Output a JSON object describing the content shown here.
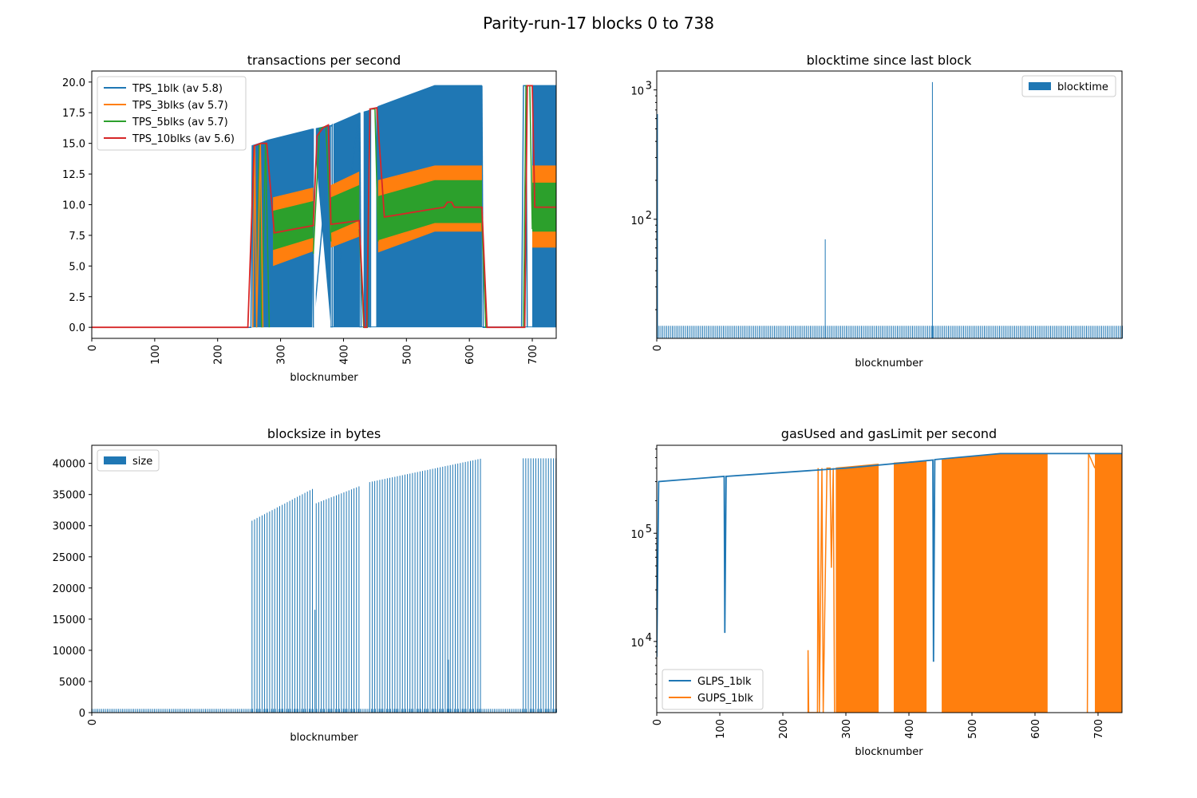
{
  "figure": {
    "title": "Parity-run-17 blocks 0 to 738"
  },
  "colors": {
    "blue": "#1f77b4",
    "orange": "#ff7f0e",
    "green": "#2ca02c",
    "red": "#d62728"
  },
  "chart_data": [
    {
      "id": "tps",
      "type": "line",
      "title": "transactions per second",
      "xlabel": "blocknumber",
      "ylabel": "",
      "xlim": [
        0,
        738
      ],
      "ylim": [
        -0.9,
        20.9
      ],
      "xticks": [
        0,
        100,
        200,
        300,
        400,
        500,
        600,
        700
      ],
      "yticks": [
        "0.0",
        "2.5",
        "5.0",
        "7.5",
        "10.0",
        "12.5",
        "15.0",
        "17.5",
        "20.0"
      ],
      "legend_position": "upper-left",
      "series": [
        {
          "name": "TPS_1blk (av 5.8)",
          "color": "blue",
          "points": [
            [
              0,
              0
            ],
            [
              253,
              0
            ],
            [
              255,
              14.8
            ],
            [
              280,
              15.2
            ],
            [
              350,
              16.0
            ],
            [
              352,
              0
            ],
            [
              380,
              16.4
            ],
            [
              380,
              0
            ],
            [
              425,
              17.5
            ],
            [
              426,
              0
            ],
            [
              440,
              17.7
            ],
            [
              442,
              0
            ],
            [
              455,
              18.0
            ],
            [
              545,
              19.7
            ],
            [
              620,
              19.7
            ],
            [
              622,
              0
            ],
            [
              683,
              0
            ],
            [
              685,
              19.7
            ],
            [
              738,
              19.7
            ]
          ],
          "band": [
            [
              255,
              0,
              14.8
            ],
            [
              280,
              0,
              15.3
            ],
            [
              350,
              0,
              16.2
            ],
            [
              352,
              16.2,
              16.2
            ],
            [
              380,
              0,
              16.5
            ],
            [
              425,
              0,
              17.5
            ],
            [
              440,
              0,
              17.7
            ],
            [
              455,
              0,
              18.0
            ],
            [
              545,
              0,
              19.7
            ],
            [
              620,
              0,
              19.7
            ],
            [
              685,
              0,
              19.7
            ],
            [
              738,
              0,
              19.7
            ]
          ]
        },
        {
          "name": "TPS_3blks (av 5.7)",
          "color": "orange",
          "bands": [
            [
              [
                288,
                5.0,
                10.6
              ],
              [
                352,
                6.2,
                11.4
              ]
            ],
            [
              [
                380,
                6.5,
                11.6
              ],
              [
                425,
                7.4,
                12.7
              ]
            ],
            [
              [
                455,
                6.1,
                12.0
              ],
              [
                545,
                7.8,
                13.2
              ],
              [
                620,
                7.8,
                13.2
              ]
            ],
            [
              [
                700,
                6.5,
                13.2
              ],
              [
                738,
                6.5,
                13.2
              ]
            ]
          ]
        },
        {
          "name": "TPS_5blks (av 5.7)",
          "color": "green",
          "bands": [
            [
              [
                288,
                6.3,
                9.5
              ],
              [
                352,
                7.3,
                10.3
              ]
            ],
            [
              [
                380,
                7.7,
                10.6
              ],
              [
                425,
                8.7,
                11.6
              ]
            ],
            [
              [
                455,
                7.1,
                10.7
              ],
              [
                545,
                8.5,
                12.0
              ],
              [
                620,
                8.5,
                12.0
              ]
            ],
            [
              [
                700,
                7.8,
                11.8
              ],
              [
                738,
                7.8,
                11.8
              ]
            ]
          ]
        },
        {
          "name": "TPS_10blks (av 5.6)",
          "color": "red",
          "points": [
            [
              0,
              0
            ],
            [
              248,
              0
            ],
            [
              258,
              14.8
            ],
            [
              268,
              15.0
            ],
            [
              278,
              15.0
            ],
            [
              290,
              7.7
            ],
            [
              352,
              8.3
            ],
            [
              358,
              15.6
            ],
            [
              368,
              16.3
            ],
            [
              376,
              16.5
            ],
            [
              380,
              8.4
            ],
            [
              425,
              8.7
            ],
            [
              433,
              0
            ],
            [
              437,
              0
            ],
            [
              442,
              17.8
            ],
            [
              453,
              17.9
            ],
            [
              465,
              9.0
            ],
            [
              560,
              9.8
            ],
            [
              565,
              10.2
            ],
            [
              572,
              10.2
            ],
            [
              576,
              9.8
            ],
            [
              620,
              9.8
            ],
            [
              628,
              0
            ],
            [
              688,
              0
            ],
            [
              692,
              19.7
            ],
            [
              700,
              19.7
            ],
            [
              704,
              9.8
            ],
            [
              738,
              9.8
            ]
          ]
        }
      ]
    },
    {
      "id": "blocktime",
      "type": "bar",
      "title": "blocktime since last block",
      "xlabel": "blocknumber",
      "ylabel": "",
      "scale": "log",
      "ylim": [
        12,
        1400
      ],
      "yticks": [
        {
          "value": 100,
          "base": "10",
          "exp": "2"
        },
        {
          "value": 1000,
          "base": "10",
          "exp": "3"
        }
      ],
      "xticks": [
        0
      ],
      "x_range": [
        0,
        738
      ],
      "legend_entries": [
        "blocktime"
      ],
      "legend_position": "upper-right",
      "base_value": 15,
      "spikes": [
        [
          0,
          650
        ],
        [
          266,
          70
        ],
        [
          436,
          1150
        ]
      ]
    },
    {
      "id": "blocksize",
      "type": "bar",
      "title": "blocksize in bytes",
      "xlabel": "blocknumber",
      "ylabel": "",
      "ylim": [
        0,
        42900
      ],
      "yticks": [
        0,
        5000,
        10000,
        15000,
        20000,
        25000,
        30000,
        35000,
        40000
      ],
      "xticks": [
        0
      ],
      "x_range": [
        0,
        738
      ],
      "legend_entries": [
        "size"
      ],
      "legend_position": "upper-left",
      "base_value": 600,
      "ramps": [
        {
          "from": 254,
          "to": 352,
          "y0": 30800,
          "y1": 36000
        },
        {
          "from": 356,
          "to": 424,
          "y0": 33600,
          "y1": 36300
        },
        {
          "from": 441,
          "to": 620,
          "y0": 37000,
          "y1": 40800
        },
        {
          "from": 685,
          "to": 738,
          "y0": 40800,
          "y1": 40800
        }
      ],
      "outliers": [
        [
          354,
          16500
        ],
        [
          566,
          8500
        ]
      ]
    },
    {
      "id": "gas",
      "type": "line",
      "title": "gasUsed and gasLimit per second",
      "xlabel": "blocknumber",
      "ylabel": "",
      "scale": "log",
      "xlim": [
        0,
        738
      ],
      "ylim": [
        2200,
        650000
      ],
      "xticks": [
        0,
        100,
        200,
        300,
        400,
        500,
        600,
        700
      ],
      "yticks": [
        {
          "value": 10000,
          "base": "10",
          "exp": "4"
        },
        {
          "value": 100000,
          "base": "10",
          "exp": "5"
        }
      ],
      "legend_position": "lower-left",
      "series": [
        {
          "name": "GLPS_1blk",
          "color": "blue",
          "points": [
            [
              0,
              7200
            ],
            [
              3,
              300000
            ],
            [
              107,
              335000
            ],
            [
              108,
              12000
            ],
            [
              110,
              335000
            ],
            [
              300,
              400000
            ],
            [
              438,
              475000
            ],
            [
              439,
              6500
            ],
            [
              441,
              480000
            ],
            [
              545,
              545000
            ],
            [
              738,
              545000
            ]
          ]
        },
        {
          "name": "GUPS_1blk",
          "color": "orange",
          "points": [
            [
              240,
              2200
            ],
            [
              240,
              8300
            ],
            [
              241,
              2200
            ],
            [
              255,
              2200
            ],
            [
              256,
              400000
            ],
            [
              258,
              2200
            ],
            [
              262,
              400000
            ],
            [
              264,
              2200
            ],
            [
              270,
              400000
            ],
            [
              275,
              400000
            ],
            [
              277,
              48000
            ],
            [
              280,
              400000
            ],
            [
              282,
              2200
            ]
          ],
          "bands": [
            [
              [
                284,
                2200,
                405000
              ],
              [
                352,
                2200,
                440000
              ]
            ],
            [
              [
                376,
                2200,
                450000
              ],
              [
                428,
                2200,
                470000
              ]
            ],
            [
              [
                452,
                2200,
                480000
              ],
              [
                545,
                2200,
                545000
              ],
              [
                620,
                2200,
                545000
              ]
            ],
            [
              [
                695,
                2200,
                545000
              ],
              [
                738,
                2200,
                545000
              ]
            ]
          ],
          "extra": [
            [
              683,
              2200
            ],
            [
              685,
              545000
            ],
            [
              695,
              400000
            ]
          ]
        }
      ]
    }
  ]
}
